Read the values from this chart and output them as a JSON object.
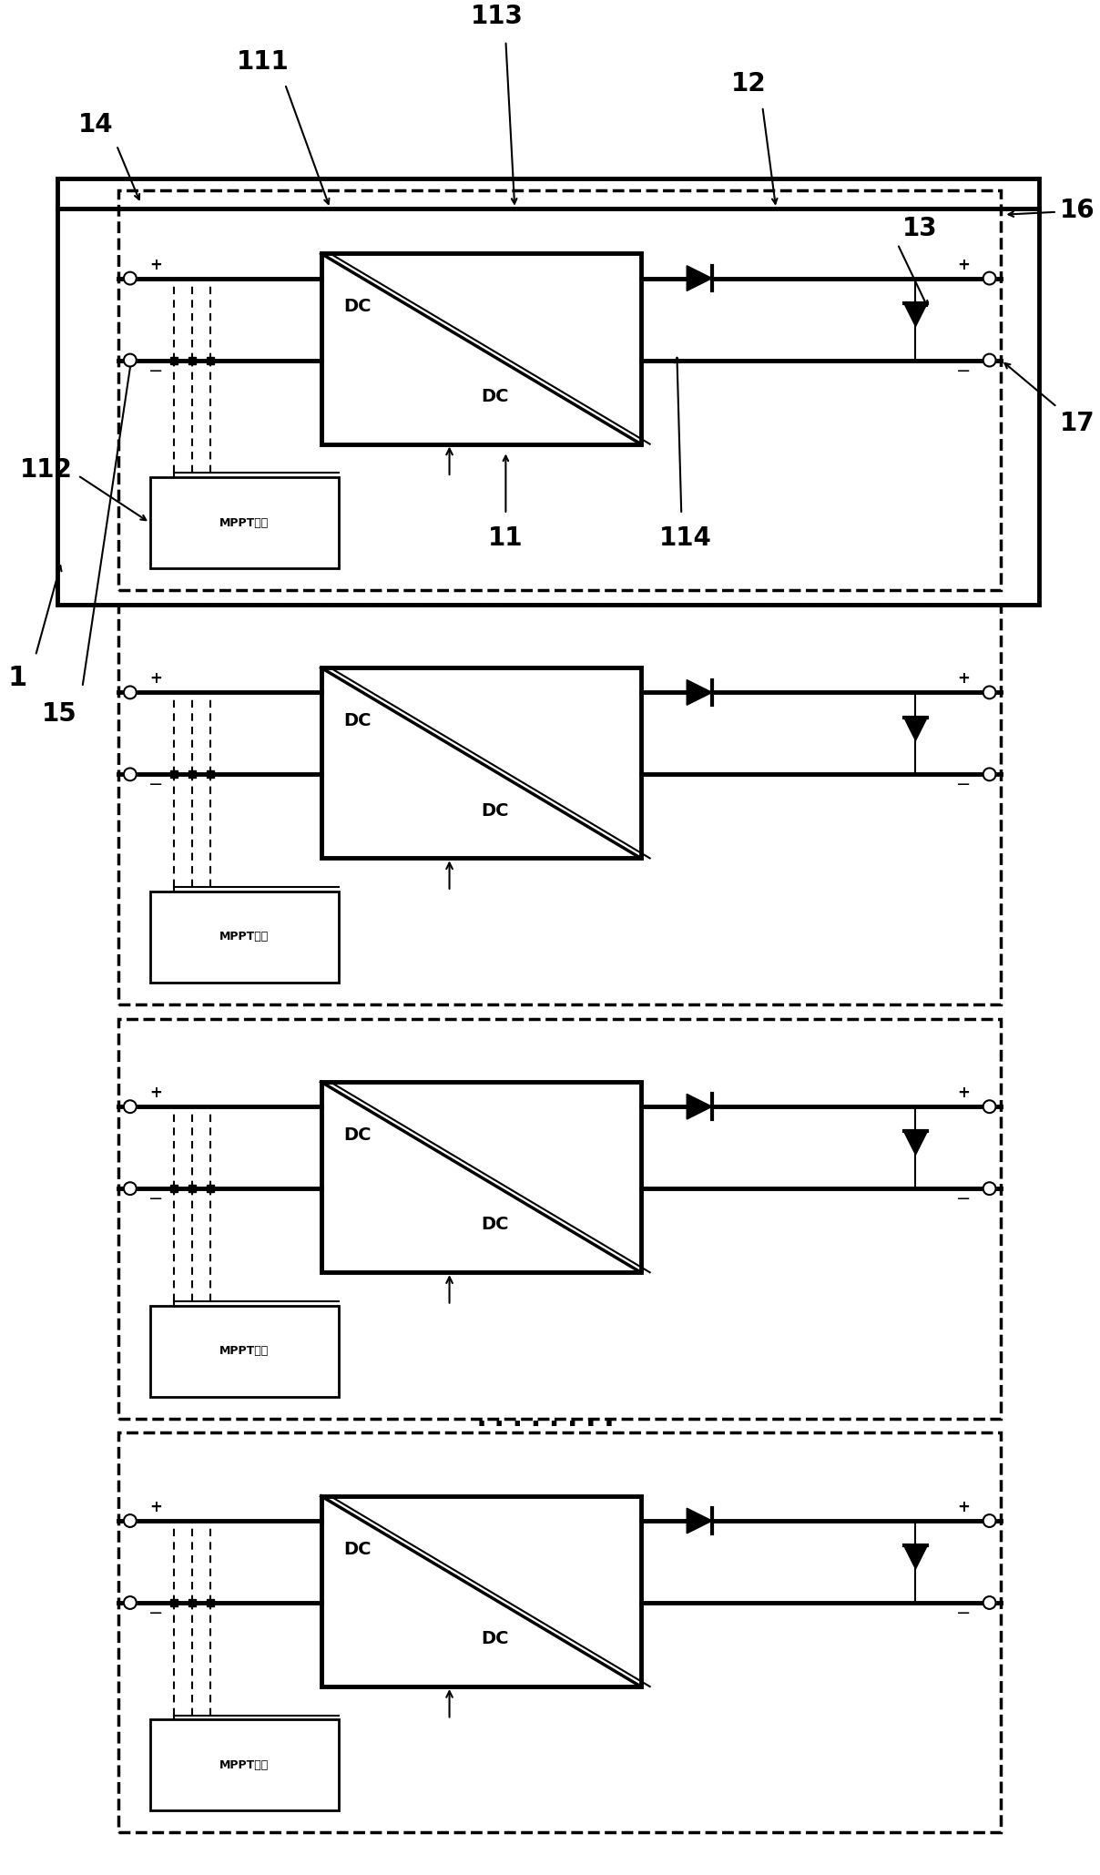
{
  "fig_width": 12.08,
  "fig_height": 20.59,
  "bg_color": "#ffffff",
  "lc": "#000000",
  "lw_thick": 3.5,
  "lw_med": 2.0,
  "lw_thin": 1.5,
  "lw_dash": 2.5,
  "n_modules": 4,
  "mppt_text": "MPPT控制",
  "dc_text": "DC",
  "label_1": "1",
  "label_11": "11",
  "label_111": "111",
  "label_112": "112",
  "label_113": "113",
  "label_114": "114",
  "label_12": "12",
  "label_13": "13",
  "label_14": "14",
  "label_15": "15",
  "label_16": "16",
  "label_17": "17",
  "label_fs": 20,
  "dc_fs": 14,
  "mppt_fs": 9
}
